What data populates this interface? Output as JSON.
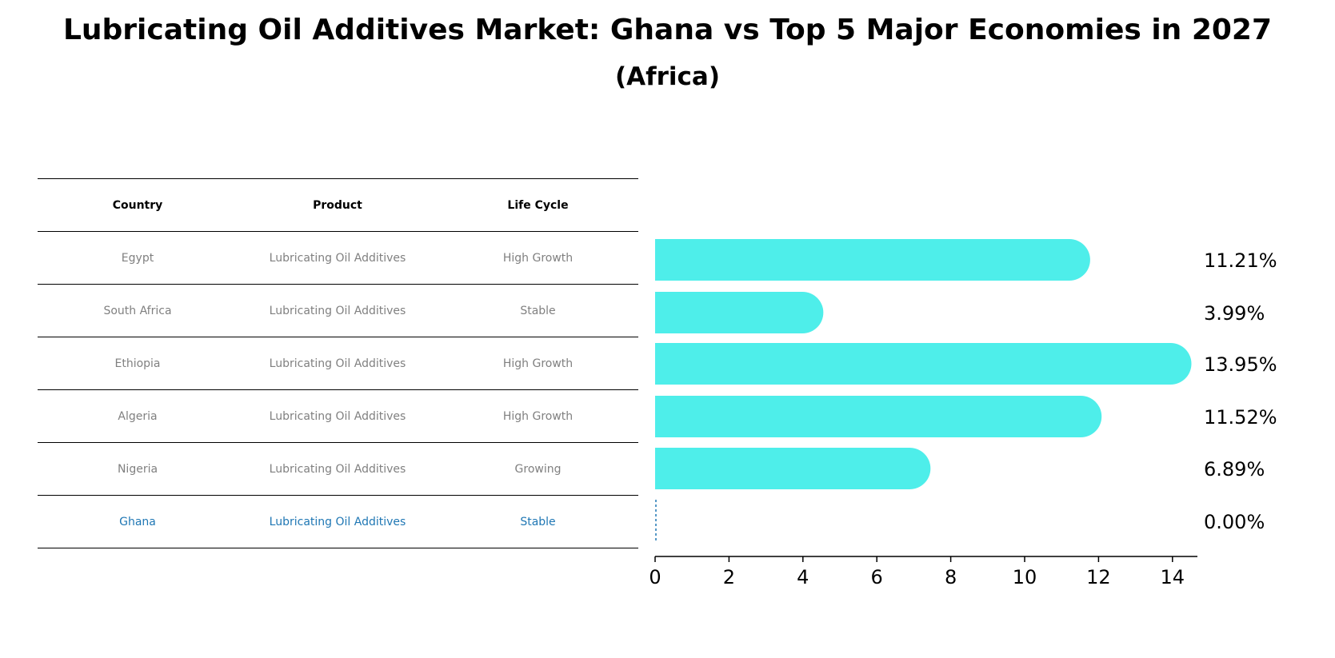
{
  "title": "Lubricating Oil Additives Market: Ghana vs Top 5 Major Economies in 2027",
  "subtitle": "(Africa)",
  "table": {
    "headers": [
      "Country",
      "Product",
      "Life Cycle"
    ],
    "rows": [
      {
        "country": "Egypt",
        "product": "Lubricating Oil Additives",
        "life_cycle": "High Growth"
      },
      {
        "country": "South Africa",
        "product": "Lubricating Oil Additives",
        "life_cycle": "Stable"
      },
      {
        "country": "Ethiopia",
        "product": "Lubricating Oil Additives",
        "life_cycle": "High Growth"
      },
      {
        "country": "Algeria",
        "product": "Lubricating Oil Additives",
        "life_cycle": "High Growth"
      },
      {
        "country": "Nigeria",
        "product": "Lubricating Oil Additives",
        "life_cycle": "Growing"
      },
      {
        "country": "Ghana",
        "product": "Lubricating Oil Additives",
        "life_cycle": "Stable"
      }
    ],
    "highlight_country": "Ghana",
    "highlight_color": "#1f77b4",
    "text_color": "#808080"
  },
  "chart_data": {
    "type": "bar",
    "orientation": "horizontal",
    "categories": [
      "Egypt",
      "South Africa",
      "Ethiopia",
      "Algeria",
      "Nigeria",
      "Ghana"
    ],
    "values": [
      11.21,
      3.99,
      13.95,
      11.52,
      6.89,
      0.0
    ],
    "value_labels": [
      "11.21%",
      "3.99%",
      "13.95%",
      "11.52%",
      "6.89%",
      "0.00%"
    ],
    "xticks": [
      0,
      2,
      4,
      6,
      8,
      10,
      12,
      14
    ],
    "xlim": [
      0,
      14.6
    ],
    "bar_color": "#4eeeea",
    "zero_marker_color": "#1f77b4",
    "grid": false
  }
}
